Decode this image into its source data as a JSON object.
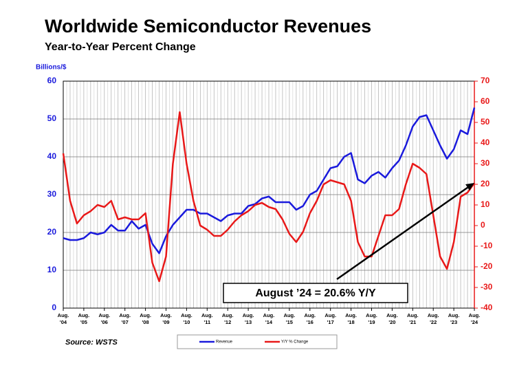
{
  "chart_data": {
    "type": "line",
    "title": "Worldwide Semiconductor Revenues",
    "subtitle": "Year-to-Year Percent Change",
    "y_axis_label": "Billions/$",
    "source": "Source: WSTS",
    "annotation": "August ’24 = 20.6% Y/Y",
    "categories": [
      [
        "Aug.",
        "'04"
      ],
      null,
      null,
      [
        "Aug.",
        "'05"
      ],
      null,
      null,
      [
        "Aug.",
        "'06"
      ],
      null,
      null,
      [
        "Aug.",
        "'07"
      ],
      null,
      null,
      [
        "Aug.",
        "'08"
      ],
      null,
      null,
      [
        "Aug.",
        "'09"
      ],
      null,
      null,
      [
        "Aug.",
        "'10"
      ],
      null,
      null,
      [
        "Aug.",
        "'11"
      ],
      null,
      null,
      [
        "Aug.",
        "'12"
      ],
      null,
      null,
      [
        "Aug.",
        "'13"
      ],
      null,
      null,
      [
        "Aug.",
        "'14"
      ],
      null,
      null,
      [
        "Aug.",
        "'15"
      ],
      null,
      null,
      [
        "Aug.",
        "'16"
      ],
      null,
      null,
      [
        "Aug.",
        "'17"
      ],
      null,
      null,
      [
        "Aug.",
        "'18"
      ],
      null,
      null,
      [
        "Aug.",
        "'19"
      ],
      null,
      null,
      [
        "Aug.",
        "'20"
      ],
      null,
      null,
      [
        "Aug.",
        "'21"
      ],
      null,
      null,
      [
        "Aug.",
        "'22"
      ],
      null,
      null,
      [
        "Aug.",
        "'23"
      ],
      null,
      null,
      [
        "Aug.",
        "'24"
      ]
    ],
    "series": [
      {
        "name": "Revenue",
        "color": "#1a1adc",
        "axis": "y",
        "values": [
          18.5,
          18,
          18,
          18.5,
          20,
          19.5,
          20,
          22,
          20.5,
          20.5,
          23,
          21,
          22,
          17,
          14.5,
          19,
          22,
          24,
          26,
          26,
          25,
          25,
          24,
          23,
          24.5,
          25,
          25,
          27,
          27.5,
          29,
          29.5,
          28,
          28,
          28,
          26,
          27,
          30,
          31,
          34,
          37,
          37.5,
          40,
          41,
          34,
          33,
          35,
          36,
          34.5,
          37,
          39,
          43,
          48,
          50.5,
          51,
          47,
          43,
          39.5,
          42,
          47,
          46,
          53
        ]
      },
      {
        "name": "Y/Y % Change",
        "color": "#e81818",
        "axis": "y2",
        "values": [
          35,
          12,
          1,
          5,
          7,
          10,
          9,
          12,
          3,
          4,
          3,
          3,
          6,
          -18,
          -27,
          -15,
          30,
          55,
          30,
          12,
          0,
          -2,
          -5,
          -5,
          -2,
          2,
          5,
          7,
          10,
          11,
          9,
          8,
          3,
          -4,
          -8,
          -3,
          6,
          12,
          20,
          22,
          21,
          20,
          12,
          -8,
          -15,
          -15,
          -5,
          5,
          5,
          8,
          20,
          30,
          28,
          25,
          5,
          -15,
          -21,
          -8,
          14,
          16,
          20.6
        ]
      }
    ],
    "ylim": [
      0,
      60
    ],
    "yticks": [
      0,
      10,
      20,
      30,
      40,
      50,
      60
    ],
    "y2lim": [
      -40,
      70
    ],
    "y2ticks": [
      -40,
      -30,
      -20,
      -10,
      0,
      10,
      20,
      30,
      40,
      50,
      60,
      70
    ],
    "grid": true
  }
}
